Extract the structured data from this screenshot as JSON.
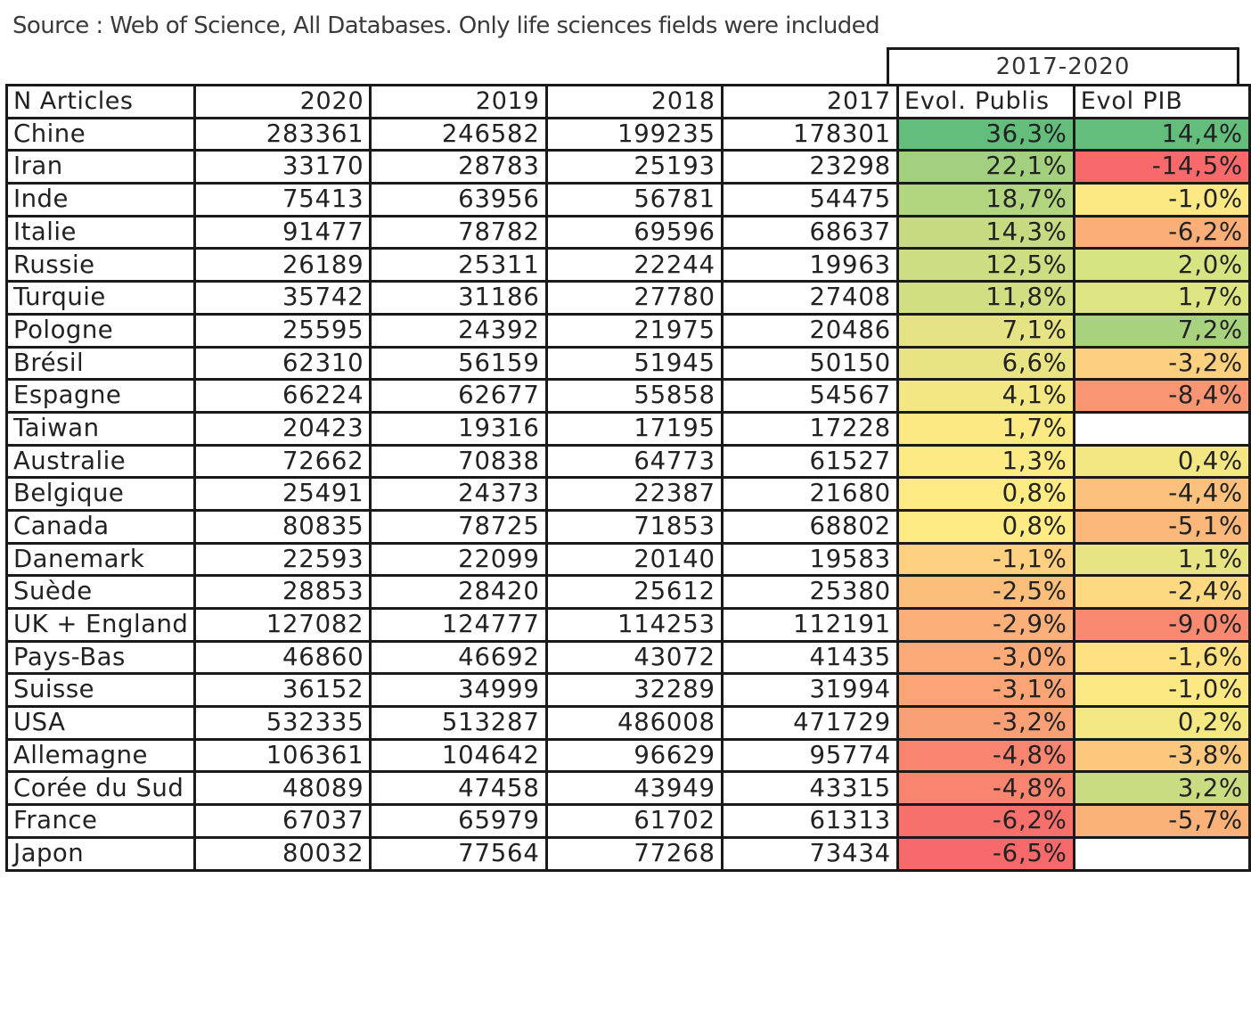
{
  "source_note": "Source : Web of Science, All Databases. Only life sciences fields were included",
  "chart_data": {
    "type": "table",
    "period_header": "2017-2020",
    "columns": [
      "N Articles",
      "2020",
      "2019",
      "2018",
      "2017",
      "Evol. Publis",
      "Evol PIB"
    ],
    "rows": [
      {
        "country": "Chine",
        "y2020": "283361",
        "y2019": "246582",
        "y2018": "199235",
        "y2017": "178301",
        "evol_publis": "36,3%",
        "evol_pib": "14,4%",
        "publis_color": "#63be7b",
        "pib_color": "#63be7b"
      },
      {
        "country": "Iran",
        "y2020": "33170",
        "y2019": "28783",
        "y2018": "25193",
        "y2017": "23298",
        "evol_publis": "22,1%",
        "evol_pib": "-14,5%",
        "publis_color": "#a2d07f",
        "pib_color": "#f8696b"
      },
      {
        "country": "Inde",
        "y2020": "75413",
        "y2019": "63956",
        "y2018": "56781",
        "y2017": "54475",
        "evol_publis": "18,7%",
        "evol_pib": "-1,0%",
        "publis_color": "#b2d580",
        "pib_color": "#fde983"
      },
      {
        "country": "Italie",
        "y2020": "91477",
        "y2019": "78782",
        "y2018": "69596",
        "y2017": "68637",
        "evol_publis": "14,3%",
        "evol_pib": "-6,2%",
        "publis_color": "#c5da81",
        "pib_color": "#fbae78"
      },
      {
        "country": "Russie",
        "y2020": "26189",
        "y2019": "25311",
        "y2018": "22244",
        "y2017": "19963",
        "evol_publis": "12,5%",
        "evol_pib": "2,0%",
        "publis_color": "#cddd82",
        "pib_color": "#d6e482"
      },
      {
        "country": "Turquie",
        "y2020": "35742",
        "y2019": "31186",
        "y2018": "27780",
        "y2017": "27408",
        "evol_publis": "11,8%",
        "evol_pib": "1,7%",
        "publis_color": "#d1de82",
        "pib_color": "#dde582"
      },
      {
        "country": "Pologne",
        "y2020": "25595",
        "y2019": "24392",
        "y2018": "21975",
        "y2017": "20486",
        "evol_publis": "7,1%",
        "evol_pib": "7,2%",
        "publis_color": "#e5e383",
        "pib_color": "#a9d27f"
      },
      {
        "country": "Brésil",
        "y2020": "62310",
        "y2019": "56159",
        "y2018": "51945",
        "y2017": "50150",
        "evol_publis": "6,6%",
        "evol_pib": "-3,2%",
        "publis_color": "#e8e483",
        "pib_color": "#fcd07f"
      },
      {
        "country": "Espagne",
        "y2020": "66224",
        "y2019": "62677",
        "y2018": "55858",
        "y2017": "54567",
        "evol_publis": "4,1%",
        "evol_pib": "-8,4%",
        "publis_color": "#f2e783",
        "pib_color": "#fa9573"
      },
      {
        "country": "Taiwan",
        "y2020": "20423",
        "y2019": "19316",
        "y2018": "17195",
        "y2017": "17228",
        "evol_publis": "1,7%",
        "evol_pib": "",
        "publis_color": "#fbea84",
        "pib_color": "#ffffff"
      },
      {
        "country": "Australie",
        "y2020": "72662",
        "y2019": "70838",
        "y2018": "64773",
        "y2017": "61527",
        "evol_publis": "1,3%",
        "evol_pib": "0,4%",
        "publis_color": "#fceb84",
        "pib_color": "#f2e783"
      },
      {
        "country": "Belgique",
        "y2020": "25491",
        "y2019": "24373",
        "y2018": "22387",
        "y2017": "21680",
        "evol_publis": "0,8%",
        "evol_pib": "-4,4%",
        "publis_color": "#feeb84",
        "pib_color": "#fcc17c"
      },
      {
        "country": "Canada",
        "y2020": "80835",
        "y2019": "78725",
        "y2018": "71853",
        "y2017": "68802",
        "evol_publis": "0,8%",
        "evol_pib": "-5,1%",
        "publis_color": "#feeb84",
        "pib_color": "#fbb87a"
      },
      {
        "country": "Danemark",
        "y2020": "22593",
        "y2019": "22099",
        "y2018": "20140",
        "y2017": "19583",
        "evol_publis": "-1,1%",
        "evol_pib": "1,1%",
        "publis_color": "#fdd17f",
        "pib_color": "#e6e483"
      },
      {
        "country": "Suède",
        "y2020": "28853",
        "y2019": "28420",
        "y2018": "25612",
        "y2017": "25380",
        "evol_publis": "-2,5%",
        "evol_pib": "-2,4%",
        "publis_color": "#fcbf7b",
        "pib_color": "#fdd981"
      },
      {
        "country": "UK + England",
        "y2020": "127082",
        "y2019": "124777",
        "y2018": "114253",
        "y2017": "112191",
        "evol_publis": "-2,9%",
        "evol_pib": "-9,0%",
        "publis_color": "#fbb079",
        "pib_color": "#f98a71"
      },
      {
        "country": "Pays-Bas",
        "y2020": "46860",
        "y2019": "46692",
        "y2018": "43072",
        "y2017": "41435",
        "evol_publis": "-3,0%",
        "evol_pib": "-1,6%",
        "publis_color": "#fbaa78",
        "pib_color": "#fee282"
      },
      {
        "country": "Suisse",
        "y2020": "36152",
        "y2019": "34999",
        "y2018": "32289",
        "y2017": "31994",
        "evol_publis": "-3,1%",
        "evol_pib": "-1,0%",
        "publis_color": "#fba577",
        "pib_color": "#fde983"
      },
      {
        "country": "USA",
        "y2020": "532335",
        "y2019": "513287",
        "y2018": "486008",
        "y2017": "471729",
        "evol_publis": "-3,2%",
        "evol_pib": "0,2%",
        "publis_color": "#faa076",
        "pib_color": "#f4e883"
      },
      {
        "country": "Allemagne",
        "y2020": "106361",
        "y2019": "104642",
        "y2018": "96629",
        "y2017": "95774",
        "evol_publis": "-4,8%",
        "evol_pib": "-3,8%",
        "publis_color": "#f9846f",
        "pib_color": "#fcc87d"
      },
      {
        "country": "Corée du Sud",
        "y2020": "48089",
        "y2019": "47458",
        "y2018": "43949",
        "y2017": "43315",
        "evol_publis": "-4,8%",
        "evol_pib": "3,2%",
        "publis_color": "#f9846f",
        "pib_color": "#c9dc81"
      },
      {
        "country": "France",
        "y2020": "67037",
        "y2019": "65979",
        "y2018": "61702",
        "y2017": "61313",
        "evol_publis": "-6,2%",
        "evol_pib": "-5,7%",
        "publis_color": "#f8706c",
        "pib_color": "#fbb279"
      },
      {
        "country": "Japon",
        "y2020": "80032",
        "y2019": "77564",
        "y2018": "77268",
        "y2017": "73434",
        "evol_publis": "-6,5%",
        "evol_pib": "",
        "publis_color": "#f8696b",
        "pib_color": "#ffffff"
      }
    ]
  }
}
